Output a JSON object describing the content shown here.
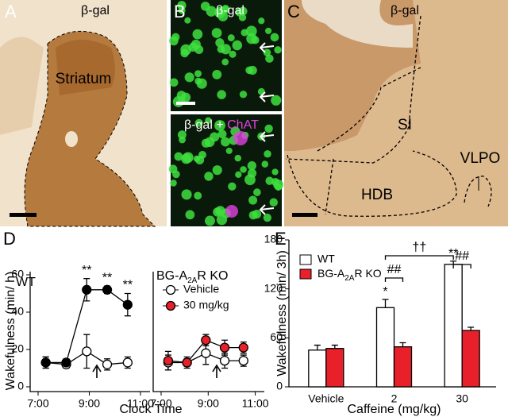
{
  "panels": {
    "A": {
      "letter": "A",
      "stain": "β-gal",
      "region": "Striatum"
    },
    "B": {
      "letter": "B",
      "top_stain": "β-gal",
      "bottom_stain": "β-gal + ",
      "bottom_marker": "ChAT"
    },
    "C": {
      "letter": "C",
      "stain": "β-gal",
      "regions": [
        "SI",
        "HDB",
        "VLPO"
      ]
    },
    "D": {
      "letter": "D"
    },
    "E": {
      "letter": "E"
    }
  },
  "chart_data": [
    {
      "type": "line",
      "title": "WT",
      "ylabel": "Wakefulness (min/ h)",
      "xlabel": "Clock Time",
      "xlim": [
        7,
        11.25
      ],
      "xticks": [
        {
          "value": 7,
          "label": "7:00"
        },
        {
          "value": 9,
          "label": "9:00"
        },
        {
          "value": 11,
          "label": "11:00"
        }
      ],
      "ylim": [
        0,
        60
      ],
      "yticks": [
        0,
        20,
        40,
        60
      ],
      "x": [
        7.3,
        8.1,
        8.9,
        9.7,
        10.5
      ],
      "series": [
        {
          "color": "#ffffff",
          "values": [
            13,
            12,
            19,
            12,
            13
          ],
          "errors": [
            3,
            2,
            9,
            3,
            3
          ]
        },
        {
          "color": "#000000",
          "values": [
            13,
            13,
            52,
            52,
            44
          ],
          "errors": [
            3,
            2,
            6,
            2,
            6
          ]
        }
      ],
      "annotations": [
        {
          "text": "**",
          "series": 1,
          "index": 2
        },
        {
          "text": "**",
          "series": 1,
          "index": 3
        },
        {
          "text": "**",
          "series": 1,
          "index": 4
        }
      ]
    },
    {
      "type": "line",
      "title": "BG-A",
      "title_sub": "2A",
      "title_suffix": "R KO",
      "xlim": [
        7,
        11.25
      ],
      "xticks": [
        {
          "value": 7,
          "label": "7:00"
        },
        {
          "value": 9,
          "label": "9:00"
        },
        {
          "value": 11,
          "label": "11:00"
        }
      ],
      "ylim": [
        0,
        60
      ],
      "x": [
        7.3,
        8.1,
        8.9,
        9.7,
        10.5
      ],
      "series": [
        {
          "name": "Vehicle",
          "color": "#ffffff",
          "values": [
            13,
            13,
            18,
            14,
            14
          ],
          "errors": [
            4,
            2,
            6,
            4,
            3
          ]
        },
        {
          "name": "30 mg/kg",
          "color": "#e8202a",
          "values": [
            14,
            13,
            25,
            21,
            21
          ],
          "errors": [
            5,
            3,
            3,
            4,
            3
          ]
        }
      ]
    },
    {
      "type": "bar",
      "ylabel": "Wakefulness (min/ 3h)",
      "xlabel": "Caffeine (mg/kg)",
      "categories": [
        "Vehicle",
        "2",
        "30"
      ],
      "ylim": [
        0,
        180
      ],
      "yticks": [
        0,
        60,
        120,
        180
      ],
      "series": [
        {
          "name": "WT",
          "color": "#ffffff",
          "values": [
            45,
            97,
            150
          ],
          "errors": [
            6,
            10,
            4
          ]
        },
        {
          "name": "BG-A",
          "name_sub": "2A",
          "name_suffix": "R KO",
          "color": "#e8202a",
          "values": [
            47,
            49,
            69
          ],
          "errors": [
            4,
            5,
            4
          ]
        }
      ],
      "annotations": [
        {
          "text": "*",
          "series": 0,
          "index": 1
        },
        {
          "text": "**",
          "series": 0,
          "index": 2
        }
      ],
      "brackets": [
        {
          "text": "##",
          "from": [
            0,
            1
          ],
          "to": [
            1,
            1
          ]
        },
        {
          "text": "##",
          "from": [
            0,
            2
          ],
          "to": [
            1,
            2
          ]
        },
        {
          "text": "††",
          "from": [
            0,
            1
          ],
          "to": [
            0,
            2
          ]
        }
      ]
    }
  ]
}
